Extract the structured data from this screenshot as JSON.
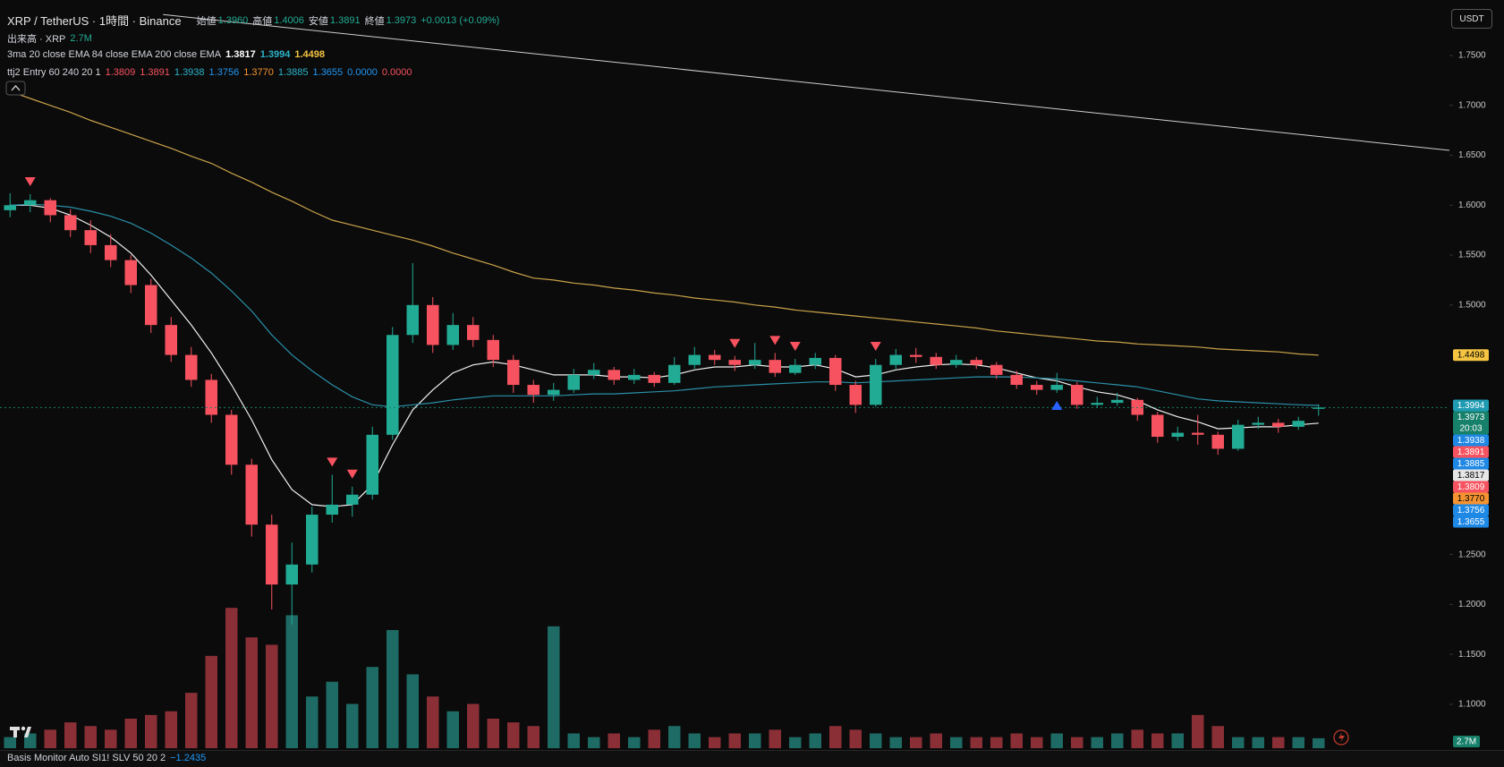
{
  "legend": {
    "symbol": "XRP / TetherUS · 1時間 · Binance",
    "ohlc": [
      {
        "label": "始値",
        "value": "1.3960"
      },
      {
        "label": "高値",
        "value": "1.4006"
      },
      {
        "label": "安値",
        "value": "1.3891"
      },
      {
        "label": "終値",
        "value": "1.3973"
      }
    ],
    "change": "+0.0013 (+0.09%)",
    "value_color": "#22ab94",
    "volume": {
      "label": "出来高 · XRP",
      "value": "2.7M",
      "color": "#22ab94"
    },
    "ma": {
      "label": "3ma 20 close EMA 84 close EMA 200 close EMA",
      "values": [
        {
          "text": "1.3817",
          "color": "#ffffff"
        },
        {
          "text": "1.3994",
          "color": "#2bb3c9"
        },
        {
          "text": "1.4498",
          "color": "#f5c542"
        }
      ]
    },
    "ttj2": {
      "label": "ttj2 Entry 60 240 20 1",
      "values": [
        {
          "text": "1.3809",
          "color": "#f7525f"
        },
        {
          "text": "1.3891",
          "color": "#f7525f"
        },
        {
          "text": "1.3938",
          "color": "#2bb3c9"
        },
        {
          "text": "1.3756",
          "color": "#2196f3"
        },
        {
          "text": "1.3770",
          "color": "#f59331"
        },
        {
          "text": "1.3885",
          "color": "#2bb3c9"
        },
        {
          "text": "1.3655",
          "color": "#2196f3"
        },
        {
          "text": "0.0000",
          "color": "#2196f3"
        },
        {
          "text": "0.0000",
          "color": "#f7525f"
        }
      ]
    }
  },
  "currency": "USDT",
  "volume_tag": "2.7M",
  "footer": {
    "label": "Basis Monitor Auto SI1! SLV 50 20 2",
    "value": "−1.2435"
  },
  "chart_data": {
    "type": "candlestick",
    "xlim": [
      -0.5,
      71.5
    ],
    "ylim": [
      1.056,
      1.796
    ],
    "yticks": [
      {
        "value": 1.1,
        "label": "1.1000"
      },
      {
        "value": 1.15,
        "label": "1.1500"
      },
      {
        "value": 1.2,
        "label": "1.2000"
      },
      {
        "value": 1.25,
        "label": "1.2500"
      },
      {
        "value": 1.5,
        "label": "1.5000"
      },
      {
        "value": 1.55,
        "label": "1.5500"
      },
      {
        "value": 1.6,
        "label": "1.6000"
      },
      {
        "value": 1.65,
        "label": "1.6500"
      },
      {
        "value": 1.7,
        "label": "1.7000"
      },
      {
        "value": 1.75,
        "label": "1.7500"
      }
    ],
    "volume_ylim": [
      0,
      200
    ],
    "up_color": "#22ab94",
    "down_color": "#f7525f",
    "volume_up_color": "#1d6b64",
    "volume_down_color": "#8a2f36",
    "candles": [
      [
        1.595,
        1.612,
        1.588,
        1.6,
        3
      ],
      [
        1.6,
        1.611,
        1.593,
        1.605,
        4
      ],
      [
        1.605,
        1.607,
        1.583,
        1.59,
        5
      ],
      [
        1.59,
        1.596,
        1.568,
        1.575,
        7
      ],
      [
        1.575,
        1.585,
        1.552,
        1.56,
        6
      ],
      [
        1.56,
        1.571,
        1.538,
        1.545,
        5
      ],
      [
        1.545,
        1.55,
        1.512,
        1.52,
        8
      ],
      [
        1.52,
        1.526,
        1.472,
        1.48,
        9
      ],
      [
        1.48,
        1.488,
        1.443,
        1.45,
        10
      ],
      [
        1.45,
        1.458,
        1.418,
        1.425,
        15
      ],
      [
        1.425,
        1.431,
        1.382,
        1.39,
        25
      ],
      [
        1.39,
        1.395,
        1.33,
        1.34,
        38
      ],
      [
        1.34,
        1.346,
        1.268,
        1.28,
        30
      ],
      [
        1.28,
        1.29,
        1.195,
        1.22,
        28
      ],
      [
        1.22,
        1.262,
        1.18,
        1.24,
        36
      ],
      [
        1.24,
        1.298,
        1.232,
        1.29,
        14
      ],
      [
        1.29,
        1.33,
        1.282,
        1.3,
        18
      ],
      [
        1.3,
        1.318,
        1.288,
        1.31,
        12
      ],
      [
        1.31,
        1.378,
        1.305,
        1.37,
        22
      ],
      [
        1.37,
        1.478,
        1.365,
        1.47,
        32
      ],
      [
        1.47,
        1.542,
        1.462,
        1.5,
        20
      ],
      [
        1.5,
        1.508,
        1.452,
        1.46,
        14
      ],
      [
        1.46,
        1.492,
        1.455,
        1.48,
        10
      ],
      [
        1.48,
        1.488,
        1.458,
        1.465,
        12
      ],
      [
        1.465,
        1.47,
        1.438,
        1.445,
        8
      ],
      [
        1.445,
        1.45,
        1.412,
        1.42,
        7
      ],
      [
        1.42,
        1.425,
        1.402,
        1.41,
        6
      ],
      [
        1.41,
        1.422,
        1.404,
        1.415,
        33
      ],
      [
        1.415,
        1.436,
        1.412,
        1.43,
        4
      ],
      [
        1.43,
        1.442,
        1.426,
        1.435,
        3
      ],
      [
        1.435,
        1.438,
        1.42,
        1.425,
        4
      ],
      [
        1.425,
        1.436,
        1.421,
        1.43,
        3
      ],
      [
        1.43,
        1.433,
        1.418,
        1.422,
        5
      ],
      [
        1.422,
        1.448,
        1.42,
        1.44,
        6
      ],
      [
        1.44,
        1.458,
        1.436,
        1.45,
        4
      ],
      [
        1.45,
        1.455,
        1.44,
        1.445,
        3
      ],
      [
        1.445,
        1.449,
        1.434,
        1.44,
        4
      ],
      [
        1.44,
        1.462,
        1.436,
        1.445,
        4
      ],
      [
        1.445,
        1.452,
        1.428,
        1.432,
        5
      ],
      [
        1.432,
        1.446,
        1.43,
        1.44,
        3
      ],
      [
        1.44,
        1.452,
        1.436,
        1.447,
        4
      ],
      [
        1.447,
        1.45,
        1.414,
        1.42,
        6
      ],
      [
        1.42,
        1.424,
        1.392,
        1.4,
        5
      ],
      [
        1.4,
        1.446,
        1.398,
        1.44,
        4
      ],
      [
        1.44,
        1.456,
        1.436,
        1.45,
        3
      ],
      [
        1.45,
        1.457,
        1.442,
        1.448,
        3
      ],
      [
        1.448,
        1.452,
        1.436,
        1.44,
        4
      ],
      [
        1.44,
        1.45,
        1.437,
        1.445,
        3
      ],
      [
        1.445,
        1.448,
        1.436,
        1.44,
        3
      ],
      [
        1.44,
        1.443,
        1.426,
        1.43,
        3
      ],
      [
        1.43,
        1.434,
        1.416,
        1.42,
        4
      ],
      [
        1.42,
        1.424,
        1.41,
        1.415,
        3
      ],
      [
        1.415,
        1.432,
        1.412,
        1.42,
        4
      ],
      [
        1.42,
        1.423,
        1.396,
        1.4,
        3
      ],
      [
        1.4,
        1.408,
        1.397,
        1.402,
        3
      ],
      [
        1.402,
        1.412,
        1.399,
        1.405,
        4
      ],
      [
        1.405,
        1.407,
        1.384,
        1.39,
        5
      ],
      [
        1.39,
        1.393,
        1.362,
        1.368,
        4
      ],
      [
        1.368,
        1.378,
        1.364,
        1.372,
        4
      ],
      [
        1.372,
        1.39,
        1.36,
        1.37,
        9
      ],
      [
        1.37,
        1.373,
        1.35,
        1.356,
        6
      ],
      [
        1.356,
        1.385,
        1.354,
        1.38,
        3
      ],
      [
        1.38,
        1.388,
        1.376,
        1.382,
        3
      ],
      [
        1.382,
        1.386,
        1.372,
        1.378,
        3
      ],
      [
        1.378,
        1.388,
        1.375,
        1.384,
        3
      ],
      [
        1.396,
        1.4006,
        1.3891,
        1.3973,
        2.7
      ]
    ],
    "series": [
      {
        "color": "#f0f0f0",
        "values": [
          1.6,
          1.6,
          1.597,
          1.59,
          1.58,
          1.568,
          1.552,
          1.53,
          1.505,
          1.48,
          1.452,
          1.42,
          1.385,
          1.345,
          1.315,
          1.3,
          1.298,
          1.3,
          1.32,
          1.36,
          1.395,
          1.415,
          1.432,
          1.44,
          1.443,
          1.44,
          1.435,
          1.43,
          1.43,
          1.43,
          1.428,
          1.428,
          1.427,
          1.43,
          1.435,
          1.438,
          1.438,
          1.44,
          1.438,
          1.438,
          1.44,
          1.436,
          1.428,
          1.43,
          1.435,
          1.438,
          1.44,
          1.441,
          1.44,
          1.437,
          1.432,
          1.427,
          1.424,
          1.418,
          1.413,
          1.41,
          1.404,
          1.395,
          1.388,
          1.383,
          1.376,
          1.377,
          1.378,
          1.378,
          1.38,
          1.3817
        ]
      },
      {
        "color": "#2a8fa8",
        "values": [
          1.6,
          1.601,
          1.6,
          1.598,
          1.594,
          1.589,
          1.582,
          1.572,
          1.56,
          1.547,
          1.532,
          1.514,
          1.494,
          1.47,
          1.45,
          1.434,
          1.42,
          1.408,
          1.4,
          1.398,
          1.4,
          1.402,
          1.405,
          1.407,
          1.409,
          1.409,
          1.409,
          1.409,
          1.41,
          1.411,
          1.411,
          1.412,
          1.413,
          1.414,
          1.416,
          1.418,
          1.419,
          1.42,
          1.421,
          1.422,
          1.423,
          1.423,
          1.422,
          1.423,
          1.424,
          1.425,
          1.426,
          1.427,
          1.428,
          1.428,
          1.428,
          1.427,
          1.426,
          1.424,
          1.422,
          1.42,
          1.418,
          1.414,
          1.41,
          1.406,
          1.404,
          1.403,
          1.402,
          1.401,
          1.4,
          1.3994
        ]
      },
      {
        "color": "#c9a24a",
        "values": [
          1.714,
          1.707,
          1.7,
          1.693,
          1.685,
          1.678,
          1.671,
          1.664,
          1.657,
          1.649,
          1.642,
          1.632,
          1.623,
          1.613,
          1.604,
          1.594,
          1.585,
          1.58,
          1.575,
          1.57,
          1.565,
          1.559,
          1.552,
          1.546,
          1.54,
          1.533,
          1.527,
          1.525,
          1.522,
          1.52,
          1.517,
          1.515,
          1.512,
          1.51,
          1.507,
          1.505,
          1.503,
          1.5,
          1.498,
          1.495,
          1.493,
          1.491,
          1.489,
          1.487,
          1.485,
          1.483,
          1.481,
          1.479,
          1.477,
          1.474,
          1.472,
          1.47,
          1.468,
          1.466,
          1.464,
          1.463,
          1.461,
          1.46,
          1.459,
          1.458,
          1.456,
          1.455,
          1.454,
          1.453,
          1.451,
          1.4498
        ]
      }
    ],
    "trendline": {
      "color": "#cfcfcf",
      "x": [
        7.6,
        71.5
      ],
      "values": [
        1.791,
        1.655
      ]
    },
    "sell_signals": [
      1,
      16,
      17,
      36,
      38,
      39,
      43
    ],
    "sell_color": "#f7525f",
    "buy_signals": [
      52
    ],
    "buy_color": "#2962ff",
    "price_tags": [
      {
        "value": 1.4498,
        "label": "1.4498",
        "color": "#f5c542",
        "text_color": "#000000"
      },
      {
        "value": 1.3994,
        "label": "1.3994",
        "color": "#1f9bb3",
        "text_color": "#ffffff"
      },
      {
        "value": 1.3973,
        "label": "1.3973",
        "color": "#16806a",
        "text_color": "#ffffff",
        "countdown": "20:03"
      },
      {
        "value": 1.3938,
        "label": "1.3938",
        "color": "#1e88e5",
        "text_color": "#ffffff"
      },
      {
        "value": 1.3891,
        "label": "1.3891",
        "color": "#f7525f",
        "text_color": "#ffffff"
      },
      {
        "value": 1.3885,
        "label": "1.3885",
        "color": "#1e88e5",
        "text_color": "#ffffff"
      },
      {
        "value": 1.3817,
        "label": "1.3817",
        "color": "#e6e6e6",
        "text_color": "#000000"
      },
      {
        "value": 1.3809,
        "label": "1.3809",
        "color": "#f7525f",
        "text_color": "#ffffff"
      },
      {
        "value": 1.377,
        "label": "1.3770",
        "color": "#f59331",
        "text_color": "#000000"
      },
      {
        "value": 1.3756,
        "label": "1.3756",
        "color": "#1e88e5",
        "text_color": "#ffffff"
      },
      {
        "value": 1.3655,
        "label": "1.3655",
        "color": "#1e88e5",
        "text_color": "#ffffff"
      }
    ]
  }
}
